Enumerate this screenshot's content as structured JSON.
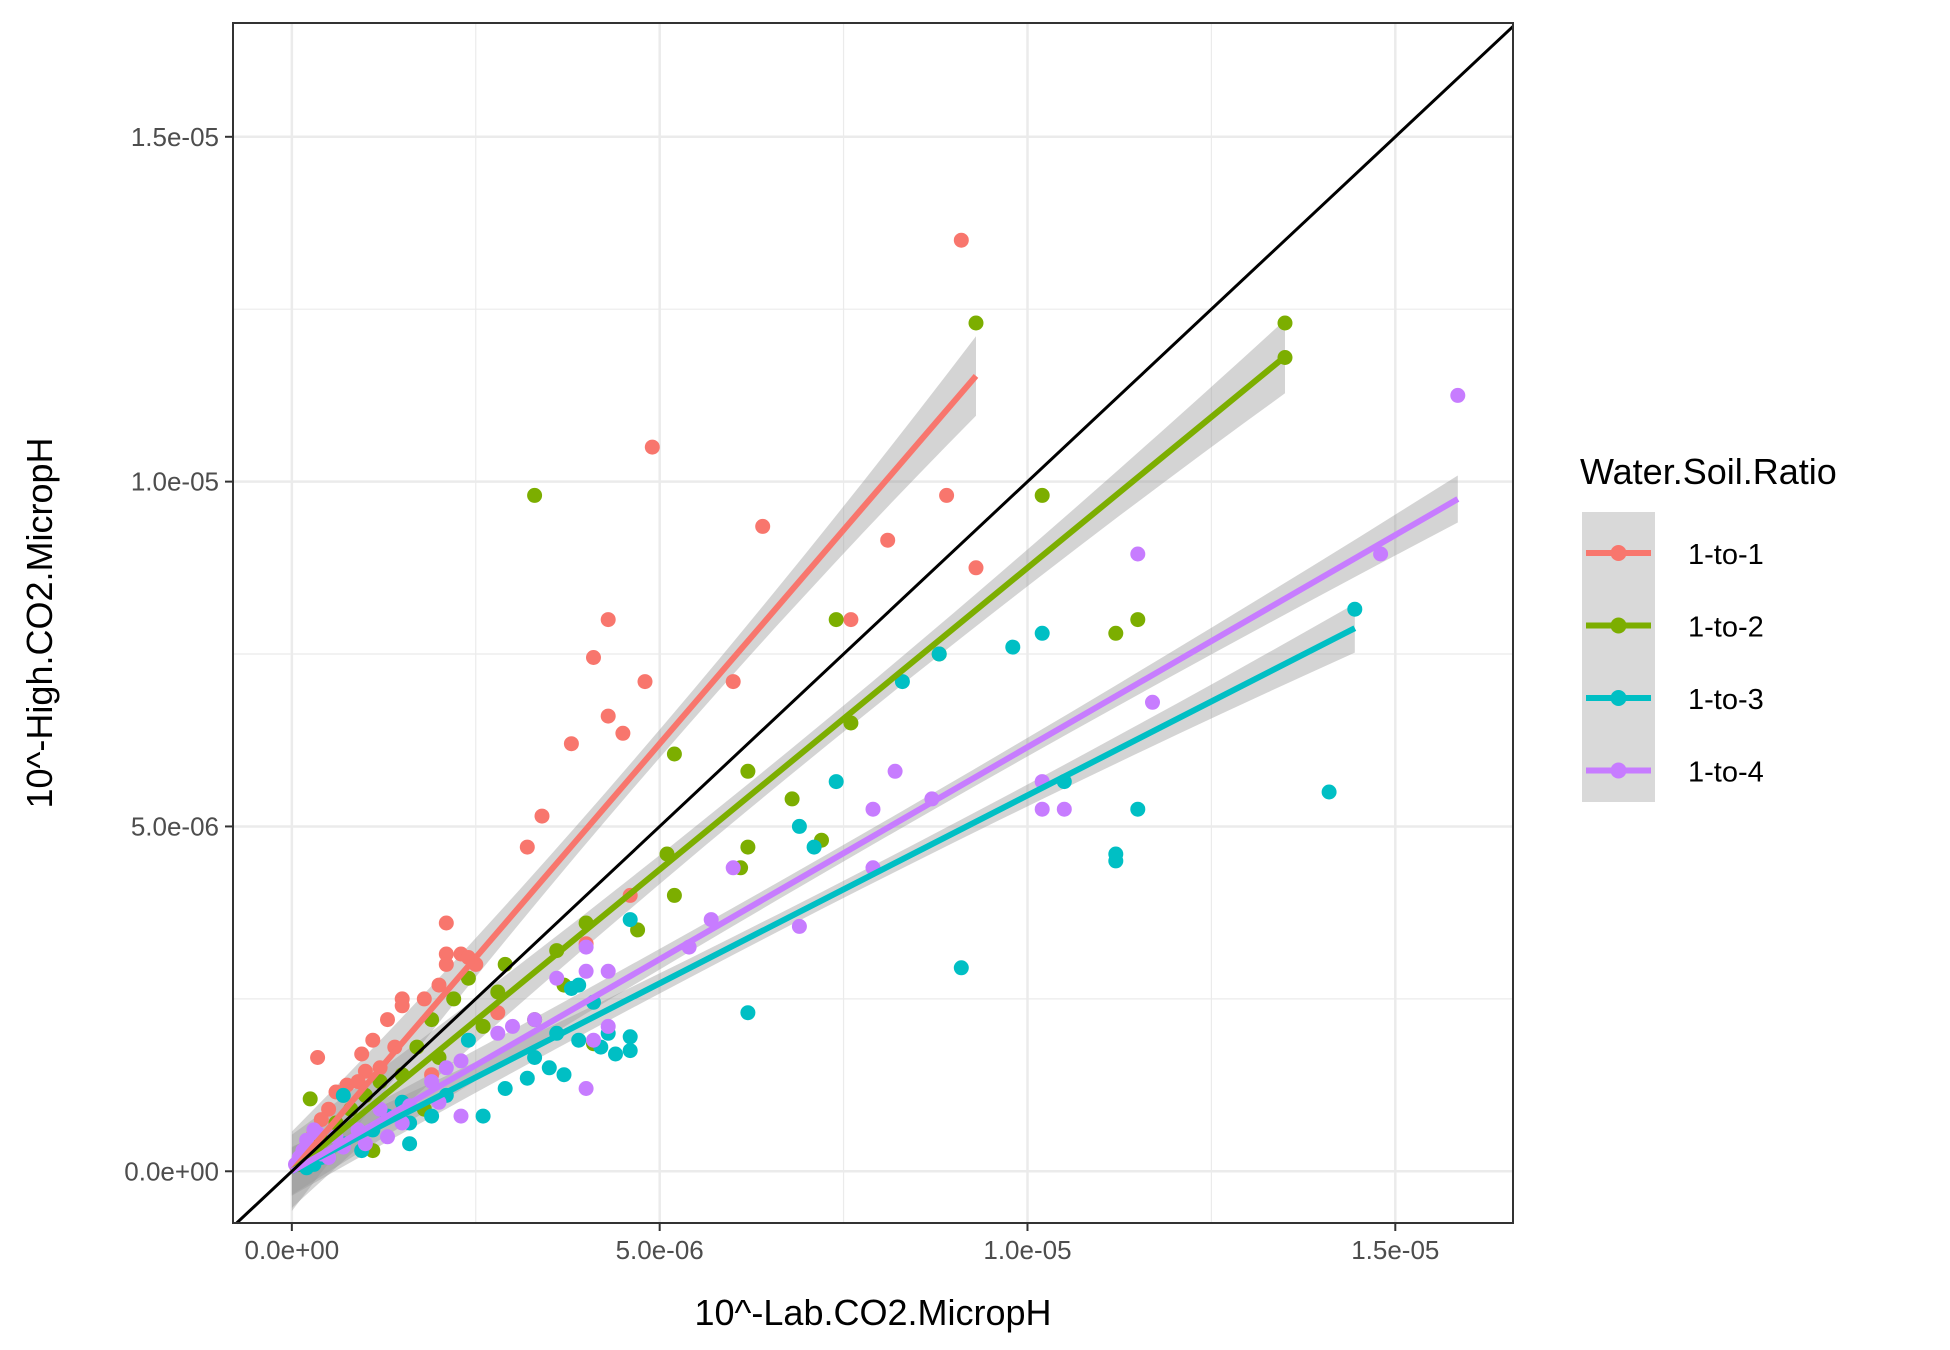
{
  "chart_data": {
    "type": "scatter",
    "xlabel": "10^-Lab.CO2.MicropH",
    "ylabel": "10^-High.CO2.MicropH",
    "xlim": [
      -8e-07,
      1.66e-05
    ],
    "ylim": [
      -7.5e-07,
      1.665e-05
    ],
    "x_ticks": [
      0,
      5e-06,
      1e-05,
      1.5e-05
    ],
    "x_tick_labels": [
      "0.0e+00",
      "5.0e-06",
      "1.0e-05",
      "1.5e-05"
    ],
    "y_ticks": [
      0,
      5e-06,
      1e-05,
      1.5e-05
    ],
    "y_tick_labels": [
      "0.0e+00",
      "5.0e-06",
      "1.0e-05",
      "1.5e-05"
    ],
    "grid": true,
    "reference_line": "y = x",
    "legend": {
      "title": "Water.Soil.Ratio",
      "placement": "right"
    },
    "series": [
      {
        "name": "1-to-1",
        "color": "#F8766D",
        "fit": {
          "slope": 1.24,
          "x_range": [
            0,
            9.3e-06
          ],
          "band": 0.05
        },
        "points": [
          [
            9.1e-06,
            1.35e-05
          ],
          [
            4.9e-06,
            1.05e-05
          ],
          [
            8.9e-06,
            9.8e-06
          ],
          [
            6.4e-06,
            9.35e-06
          ],
          [
            8.1e-06,
            9.15e-06
          ],
          [
            9.3e-06,
            8.75e-06
          ],
          [
            4.3e-06,
            8e-06
          ],
          [
            7.6e-06,
            8e-06
          ],
          [
            4.1e-06,
            7.45e-06
          ],
          [
            4.8e-06,
            7.1e-06
          ],
          [
            6e-06,
            7.1e-06
          ],
          [
            4.3e-06,
            6.6e-06
          ],
          [
            4.5e-06,
            6.35e-06
          ],
          [
            3.8e-06,
            6.2e-06
          ],
          [
            3.4e-06,
            5.15e-06
          ],
          [
            3.2e-06,
            4.7e-06
          ],
          [
            4.6e-06,
            4e-06
          ],
          [
            2.1e-06,
            3.6e-06
          ],
          [
            4e-06,
            3.3e-06
          ],
          [
            2.1e-06,
            3.15e-06
          ],
          [
            2.3e-06,
            3.15e-06
          ],
          [
            2.4e-06,
            3.1e-06
          ],
          [
            2.1e-06,
            3e-06
          ],
          [
            2.5e-06,
            3e-06
          ],
          [
            1.5e-06,
            2.5e-06
          ],
          [
            1.8e-06,
            2.5e-06
          ],
          [
            1.3e-06,
            2.2e-06
          ],
          [
            1.1e-06,
            1.9e-06
          ],
          [
            1.4e-06,
            1.8e-06
          ],
          [
            9.5e-07,
            1.7e-06
          ],
          [
            3.5e-07,
            1.65e-06
          ],
          [
            1.2e-06,
            1.5e-06
          ],
          [
            1e-06,
            1.45e-06
          ],
          [
            9e-07,
            1.3e-06
          ],
          [
            7.5e-07,
            1.25e-06
          ],
          [
            6e-07,
            1.15e-06
          ],
          [
            7e-07,
            1.1e-06
          ],
          [
            5e-07,
            9e-07
          ],
          [
            4e-07,
            7.5e-07
          ],
          [
            6e-07,
            7e-07
          ],
          [
            3e-07,
            5.5e-07
          ],
          [
            2.5e-07,
            4e-07
          ],
          [
            2e-07,
            3e-07
          ],
          [
            1e-07,
            1.5e-07
          ],
          [
            1.5e-06,
            2.4e-06
          ],
          [
            2e-06,
            2.7e-06
          ],
          [
            2.8e-06,
            2.3e-06
          ],
          [
            1.9e-06,
            1.4e-06
          ]
        ]
      },
      {
        "name": "1-to-2",
        "color": "#7CAE00",
        "fit": {
          "slope": 0.875,
          "x_range": [
            0,
            1.35e-05
          ],
          "band": 0.045
        },
        "points": [
          [
            9.3e-06,
            1.23e-05
          ],
          [
            1.35e-05,
            1.23e-05
          ],
          [
            1.35e-05,
            1.18e-05
          ],
          [
            3.3e-06,
            9.8e-06
          ],
          [
            1.02e-05,
            9.8e-06
          ],
          [
            7.4e-06,
            8e-06
          ],
          [
            1.15e-05,
            8e-06
          ],
          [
            1.12e-05,
            7.8e-06
          ],
          [
            8.8e-06,
            7.5e-06
          ],
          [
            7.6e-06,
            6.5e-06
          ],
          [
            5.2e-06,
            6.05e-06
          ],
          [
            6.2e-06,
            5.8e-06
          ],
          [
            6.8e-06,
            5.4e-06
          ],
          [
            7.2e-06,
            4.8e-06
          ],
          [
            6.2e-06,
            4.7e-06
          ],
          [
            5.1e-06,
            4.6e-06
          ],
          [
            6.1e-06,
            4.4e-06
          ],
          [
            5.2e-06,
            4e-06
          ],
          [
            4.7e-06,
            3.5e-06
          ],
          [
            4e-06,
            3.6e-06
          ],
          [
            3.6e-06,
            3.2e-06
          ],
          [
            2.9e-06,
            3e-06
          ],
          [
            2.4e-06,
            2.8e-06
          ],
          [
            3.7e-06,
            2.7e-06
          ],
          [
            2.8e-06,
            2.6e-06
          ],
          [
            2.2e-06,
            2.5e-06
          ],
          [
            1.9e-06,
            2.2e-06
          ],
          [
            3.3e-06,
            2.2e-06
          ],
          [
            2.6e-06,
            2.1e-06
          ],
          [
            4.1e-06,
            1.85e-06
          ],
          [
            1.7e-06,
            1.8e-06
          ],
          [
            2e-06,
            1.65e-06
          ],
          [
            1.5e-06,
            1.4e-06
          ],
          [
            1.2e-06,
            1.3e-06
          ],
          [
            1e-06,
            1.1e-06
          ],
          [
            2.5e-07,
            1.05e-06
          ],
          [
            8e-07,
            9e-07
          ],
          [
            1.8e-06,
            9e-07
          ],
          [
            6e-07,
            7e-07
          ],
          [
            1.1e-06,
            3e-07
          ],
          [
            4e-07,
            4.5e-07
          ],
          [
            2e-07,
            2.5e-07
          ],
          [
            1e-07,
            1e-07
          ]
        ]
      },
      {
        "name": "1-to-3",
        "color": "#00BFC4",
        "fit": {
          "slope": 0.545,
          "x_range": [
            0,
            1.445e-05
          ],
          "band": 0.045
        },
        "points": [
          [
            1.445e-05,
            8.15e-06
          ],
          [
            9.8e-06,
            7.6e-06
          ],
          [
            1.02e-05,
            7.8e-06
          ],
          [
            8.3e-06,
            7.1e-06
          ],
          [
            8.8e-06,
            7.5e-06
          ],
          [
            7.4e-06,
            5.65e-06
          ],
          [
            1.41e-05,
            5.5e-06
          ],
          [
            1.05e-05,
            5.65e-06
          ],
          [
            1.15e-05,
            5.25e-06
          ],
          [
            6.9e-06,
            5e-06
          ],
          [
            7.1e-06,
            4.7e-06
          ],
          [
            1.12e-05,
            4.6e-06
          ],
          [
            1.12e-05,
            4.5e-06
          ],
          [
            4.6e-06,
            3.65e-06
          ],
          [
            9.1e-06,
            2.95e-06
          ],
          [
            3.8e-06,
            2.65e-06
          ],
          [
            3.9e-06,
            2.7e-06
          ],
          [
            4.1e-06,
            2.45e-06
          ],
          [
            6.2e-06,
            2.3e-06
          ],
          [
            4.3e-06,
            2e-06
          ],
          [
            4.6e-06,
            1.95e-06
          ],
          [
            4.6e-06,
            1.75e-06
          ],
          [
            4.4e-06,
            1.7e-06
          ],
          [
            3.6e-06,
            2e-06
          ],
          [
            3.9e-06,
            1.9e-06
          ],
          [
            4.2e-06,
            1.8e-06
          ],
          [
            3.3e-06,
            1.65e-06
          ],
          [
            3.5e-06,
            1.5e-06
          ],
          [
            2.4e-06,
            1.9e-06
          ],
          [
            3.7e-06,
            1.4e-06
          ],
          [
            3.2e-06,
            1.35e-06
          ],
          [
            2.9e-06,
            1.2e-06
          ],
          [
            2.1e-06,
            1.1e-06
          ],
          [
            2.6e-06,
            8e-07
          ],
          [
            1.5e-06,
            1e-06
          ],
          [
            1.3e-06,
            8e-07
          ],
          [
            1.6e-06,
            7e-07
          ],
          [
            1.1e-06,
            6e-07
          ],
          [
            1.6e-06,
            4e-07
          ],
          [
            9.5e-07,
            3e-07
          ],
          [
            7e-07,
            4e-07
          ],
          [
            4e-07,
            2e-07
          ],
          [
            2e-07,
            5e-08
          ],
          [
            7e-07,
            1.1e-06
          ],
          [
            1.9e-06,
            8e-07
          ],
          [
            3e-07,
            1e-07
          ]
        ]
      },
      {
        "name": "1-to-4",
        "color": "#C77CFF",
        "fit": {
          "slope": 0.615,
          "x_range": [
            0,
            1.585e-05
          ],
          "band": 0.035
        },
        "points": [
          [
            1.585e-05,
            1.125e-05
          ],
          [
            1.15e-05,
            8.95e-06
          ],
          [
            1.48e-05,
            8.95e-06
          ],
          [
            1.17e-05,
            6.8e-06
          ],
          [
            8.2e-06,
            5.8e-06
          ],
          [
            1.02e-05,
            5.65e-06
          ],
          [
            7.9e-06,
            5.25e-06
          ],
          [
            1.02e-05,
            5.25e-06
          ],
          [
            1.05e-05,
            5.25e-06
          ],
          [
            8.7e-06,
            5.4e-06
          ],
          [
            6e-06,
            4.4e-06
          ],
          [
            7.9e-06,
            4.4e-06
          ],
          [
            5.7e-06,
            3.65e-06
          ],
          [
            6.9e-06,
            3.55e-06
          ],
          [
            5.4e-06,
            3.25e-06
          ],
          [
            4e-06,
            3.25e-06
          ],
          [
            3.6e-06,
            2.8e-06
          ],
          [
            4e-06,
            2.9e-06
          ],
          [
            4.3e-06,
            2.9e-06
          ],
          [
            3.3e-06,
            2.2e-06
          ],
          [
            3e-06,
            2.1e-06
          ],
          [
            2.8e-06,
            2e-06
          ],
          [
            4.3e-06,
            2.1e-06
          ],
          [
            4.1e-06,
            1.9e-06
          ],
          [
            2.3e-06,
            1.6e-06
          ],
          [
            2.1e-06,
            1.5e-06
          ],
          [
            1.9e-06,
            1.3e-06
          ],
          [
            4e-06,
            1.2e-06
          ],
          [
            2.3e-06,
            8e-07
          ],
          [
            1.2e-06,
            9e-07
          ],
          [
            1.5e-06,
            7e-07
          ],
          [
            1.3e-06,
            5e-07
          ],
          [
            9e-07,
            6e-07
          ],
          [
            6e-07,
            5e-07
          ],
          [
            3.5e-07,
            5.5e-07
          ],
          [
            3e-07,
            6e-07
          ],
          [
            2e-07,
            4.5e-07
          ],
          [
            2.5e-07,
            3.5e-07
          ],
          [
            1.5e-07,
            3e-07
          ],
          [
            1e-07,
            2e-07
          ],
          [
            5e-08,
            1e-07
          ],
          [
            4e-07,
            2.5e-07
          ],
          [
            5e-07,
            2e-07
          ],
          [
            7e-07,
            3.5e-07
          ],
          [
            1e-06,
            4e-07
          ],
          [
            1.6e-06,
            9.5e-07
          ],
          [
            2e-06,
            1e-06
          ]
        ]
      }
    ]
  }
}
